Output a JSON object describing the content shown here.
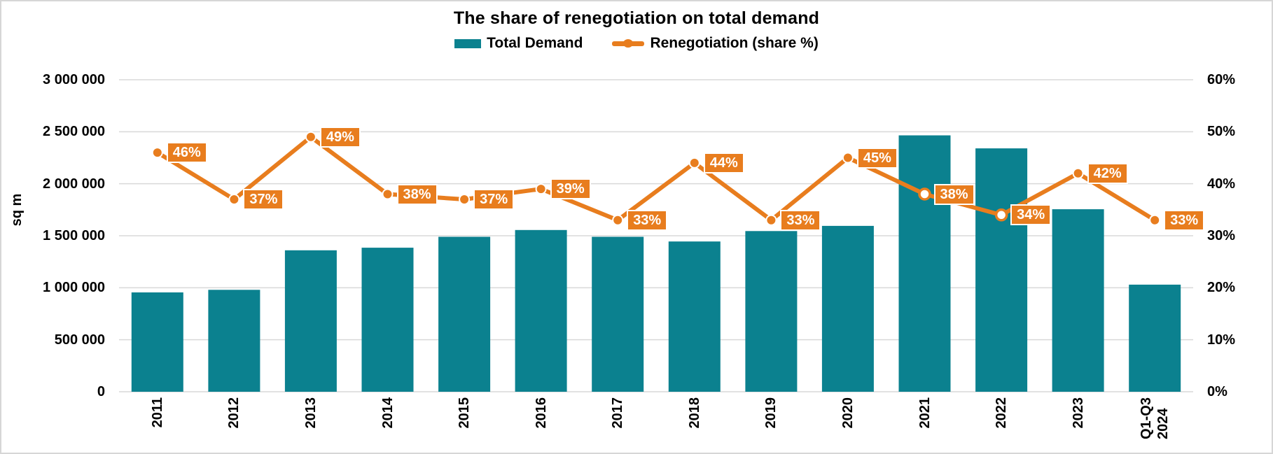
{
  "title": "The share of renegotiation on total demand",
  "legend": [
    {
      "label": "Total Demand",
      "type": "bar"
    },
    {
      "label": "Renegotiation (share %)",
      "type": "line"
    }
  ],
  "axes": {
    "left_title": "sq m",
    "left_ticks": [
      "3 000 000",
      "2 500 000",
      "2 000 000",
      "1 500 000",
      "1 000 000",
      "500 000",
      "0"
    ],
    "right_ticks": [
      "60%",
      "50%",
      "40%",
      "30%",
      "20%",
      "10%",
      "0%"
    ]
  },
  "colors": {
    "bar": "#0b818f",
    "line": "#e87d1e",
    "grid": "#d9d9d9",
    "label_text": "#ffffff",
    "axis_text": "#000000"
  },
  "chart_data": {
    "type": "bar",
    "subtype": "combo-bar-line",
    "title": "The share of renegotiation on total demand",
    "categories": [
      "2011",
      "2012",
      "2013",
      "2014",
      "2015",
      "2016",
      "2017",
      "2018",
      "2019",
      "2020",
      "2021",
      "2022",
      "2023",
      "Q1-Q3 2024"
    ],
    "x_label_lines": [
      [
        "2011"
      ],
      [
        "2012"
      ],
      [
        "2013"
      ],
      [
        "2014"
      ],
      [
        "2015"
      ],
      [
        "2016"
      ],
      [
        "2017"
      ],
      [
        "2018"
      ],
      [
        "2019"
      ],
      [
        "2020"
      ],
      [
        "2021"
      ],
      [
        "2022"
      ],
      [
        "2023"
      ],
      [
        "Q1-Q3",
        "2024"
      ]
    ],
    "series": [
      {
        "name": "Total Demand",
        "type": "bar",
        "axis": "left",
        "unit": "sq m",
        "values": [
          955000,
          980000,
          1360000,
          1385000,
          1490000,
          1555000,
          1490000,
          1445000,
          1545000,
          1595000,
          2465000,
          2340000,
          1755000,
          1030000
        ]
      },
      {
        "name": "Renegotiation (share %)",
        "type": "line",
        "axis": "right",
        "unit": "%",
        "values": [
          46,
          37,
          49,
          38,
          37,
          39,
          33,
          44,
          33,
          45,
          38,
          34,
          42,
          33
        ],
        "point_labels": [
          "46%",
          "37%",
          "49%",
          "38%",
          "37%",
          "39%",
          "33%",
          "44%",
          "33%",
          "45%",
          "38%",
          "34%",
          "42%",
          "33%"
        ],
        "hollow_marker_indices": [
          10,
          11
        ]
      }
    ],
    "left_axis": {
      "title": "sq m",
      "min": 0,
      "max": 3000000,
      "step": 500000
    },
    "right_axis": {
      "min": 0,
      "max": 60,
      "step": 10,
      "unit": "%"
    },
    "grid": true,
    "legend_position": "top-center"
  }
}
